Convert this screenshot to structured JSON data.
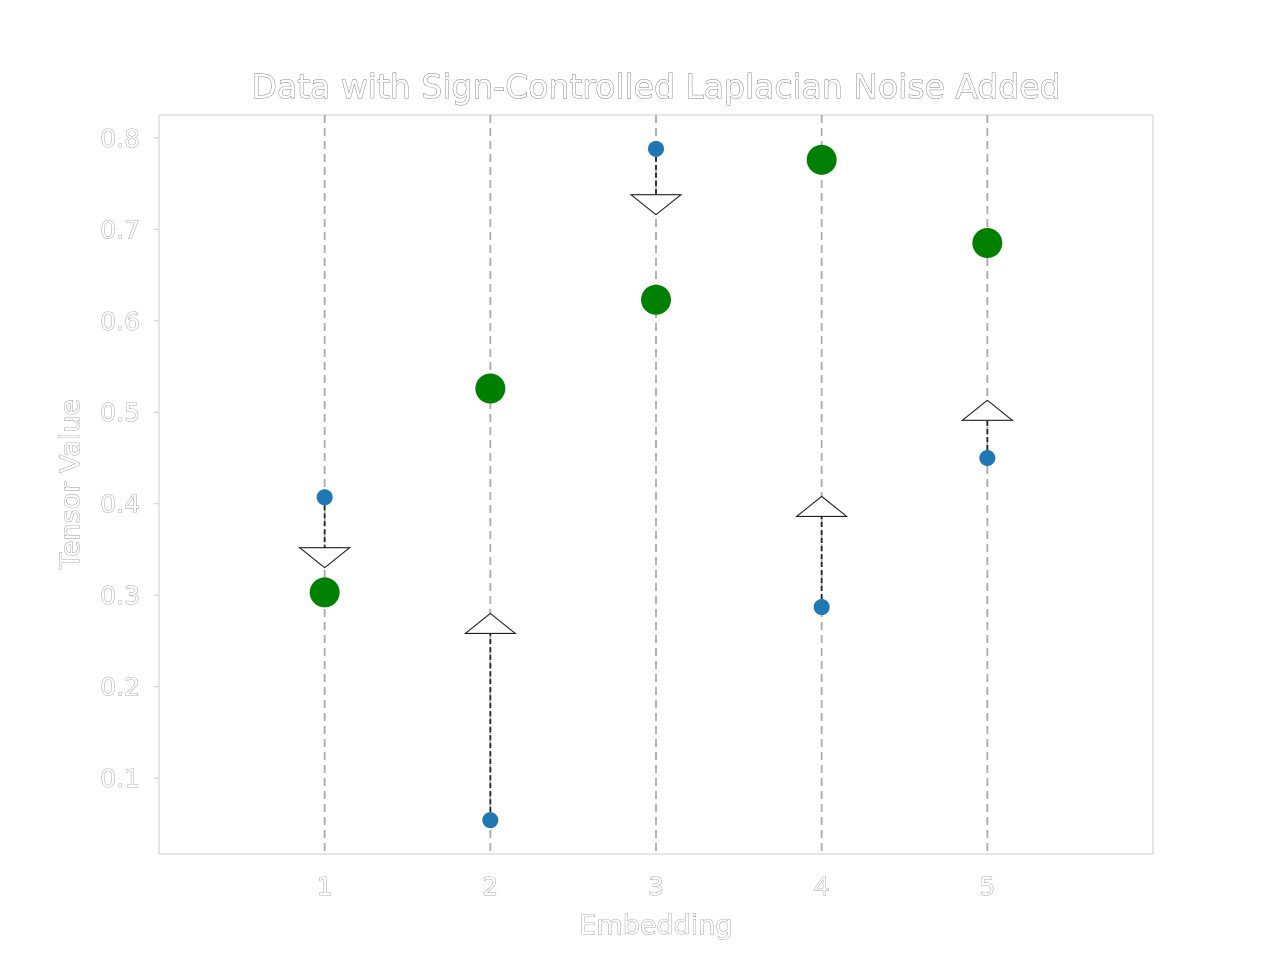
{
  "chart_data": {
    "type": "scatter",
    "title": "Data with Sign-Controlled Laplacian Noise Added",
    "xlabel": "Embedding",
    "ylabel": "Tensor Value",
    "x": [
      1,
      2,
      3,
      4,
      5
    ],
    "xticks": [
      "1",
      "2",
      "3",
      "4",
      "5"
    ],
    "yticks": [
      "0.1",
      "0.2",
      "0.3",
      "0.4",
      "0.5",
      "0.6",
      "0.7",
      "0.8"
    ],
    "xlim": [
      0,
      6
    ],
    "ylim": [
      0.017,
      0.825
    ],
    "grid": "vertical dashed lines at each embedding",
    "legend": "none",
    "series": [
      {
        "values": [
          0.407,
          0.054,
          0.788,
          0.287,
          0.45
        ],
        "color": "#1f77b4",
        "marker": "small circle"
      },
      {
        "values": [
          0.303,
          0.526,
          0.623,
          0.776,
          0.685
        ],
        "color": "#008000",
        "marker": "large circle"
      }
    ],
    "arrows": [
      {
        "x": 1,
        "from": 0.407,
        "to": 0.33,
        "direction": "down"
      },
      {
        "x": 2,
        "from": 0.054,
        "to": 0.28,
        "direction": "up"
      },
      {
        "x": 3,
        "from": 0.788,
        "to": 0.716,
        "direction": "down"
      },
      {
        "x": 4,
        "from": 0.287,
        "to": 0.408,
        "direction": "up"
      },
      {
        "x": 5,
        "from": 0.45,
        "to": 0.513,
        "direction": "up"
      }
    ]
  }
}
